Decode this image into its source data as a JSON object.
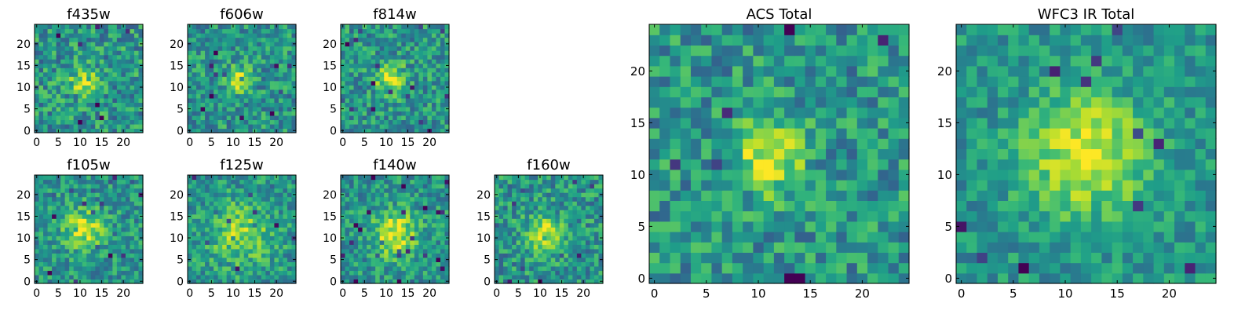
{
  "chart_data": [
    {
      "type": "heatmap",
      "title": "f435w",
      "xticks": [
        "0",
        "5",
        "10",
        "15",
        "20"
      ],
      "yticks": [
        "0",
        "5",
        "10",
        "15",
        "20"
      ],
      "xlim": [
        -0.5,
        24.5
      ],
      "ylim": [
        -0.5,
        24.5
      ],
      "peak": [
        11,
        11
      ],
      "peak_strength": 0.33,
      "spread": 2.5,
      "noise": 0.24,
      "seed": 11
    },
    {
      "type": "heatmap",
      "title": "f606w",
      "xticks": [
        "0",
        "5",
        "10",
        "15",
        "20"
      ],
      "yticks": [
        "0",
        "5",
        "10",
        "15",
        "20"
      ],
      "xlim": [
        -0.5,
        24.5
      ],
      "ylim": [
        -0.5,
        24.5
      ],
      "peak": [
        11,
        12
      ],
      "peak_strength": 0.45,
      "spread": 2.0,
      "noise": 0.22,
      "seed": 23
    },
    {
      "type": "heatmap",
      "title": "f814w",
      "xticks": [
        "0",
        "5",
        "10",
        "15",
        "20"
      ],
      "yticks": [
        "0",
        "5",
        "10",
        "15",
        "20"
      ],
      "xlim": [
        -0.5,
        24.5
      ],
      "ylim": [
        -0.5,
        24.5
      ],
      "peak": [
        11,
        12
      ],
      "peak_strength": 0.45,
      "spread": 2.3,
      "noise": 0.22,
      "seed": 37
    },
    {
      "type": "heatmap",
      "title": "f105w",
      "xticks": [
        "0",
        "5",
        "10",
        "15",
        "20"
      ],
      "yticks": [
        "0",
        "5",
        "10",
        "15",
        "20"
      ],
      "xlim": [
        -0.5,
        24.5
      ],
      "ylim": [
        -0.5,
        24.5
      ],
      "peak": [
        11,
        12
      ],
      "peak_strength": 0.4,
      "spread": 3.2,
      "noise": 0.2,
      "seed": 41
    },
    {
      "type": "heatmap",
      "title": "f125w",
      "xticks": [
        "0",
        "5",
        "10",
        "15",
        "20"
      ],
      "yticks": [
        "0",
        "5",
        "10",
        "15",
        "20"
      ],
      "xlim": [
        -0.5,
        24.5
      ],
      "ylim": [
        -0.5,
        24.5
      ],
      "peak": [
        12,
        11
      ],
      "peak_strength": 0.3,
      "spread": 5.0,
      "noise": 0.2,
      "seed": 53
    },
    {
      "type": "heatmap",
      "title": "f140w",
      "xticks": [
        "0",
        "5",
        "10",
        "15",
        "20"
      ],
      "yticks": [
        "0",
        "5",
        "10",
        "15",
        "20"
      ],
      "xlim": [
        -0.5,
        24.5
      ],
      "ylim": [
        -0.5,
        24.5
      ],
      "peak": [
        12,
        11
      ],
      "peak_strength": 0.45,
      "spread": 3.5,
      "noise": 0.2,
      "seed": 67
    },
    {
      "type": "heatmap",
      "title": "f160w",
      "xticks": [
        "0",
        "5",
        "10",
        "15",
        "20"
      ],
      "yticks": [
        "0",
        "5",
        "10",
        "15",
        "20"
      ],
      "xlim": [
        -0.5,
        24.5
      ],
      "ylim": [
        -0.5,
        24.5
      ],
      "peak": [
        11,
        11
      ],
      "peak_strength": 0.45,
      "spread": 2.8,
      "noise": 0.22,
      "seed": 79
    },
    {
      "type": "heatmap",
      "title": "ACS Total",
      "xticks": [
        "0",
        "5",
        "10",
        "15",
        "20"
      ],
      "yticks": [
        "0",
        "5",
        "10",
        "15",
        "20"
      ],
      "xlim": [
        -0.5,
        24.5
      ],
      "ylim": [
        -0.5,
        24.5
      ],
      "peak": [
        11,
        11.5
      ],
      "peak_strength": 0.5,
      "spread": 2.2,
      "noise": 0.22,
      "seed": 97
    },
    {
      "type": "heatmap",
      "title": "WFC3 IR Total",
      "xticks": [
        "0",
        "5",
        "10",
        "15",
        "20"
      ],
      "yticks": [
        "0",
        "5",
        "10",
        "15",
        "20"
      ],
      "xlim": [
        -0.5,
        24.5
      ],
      "ylim": [
        -0.5,
        24.5
      ],
      "peak": [
        12,
        12
      ],
      "peak_strength": 0.45,
      "spread": 4.0,
      "noise": 0.16,
      "seed": 113
    }
  ]
}
